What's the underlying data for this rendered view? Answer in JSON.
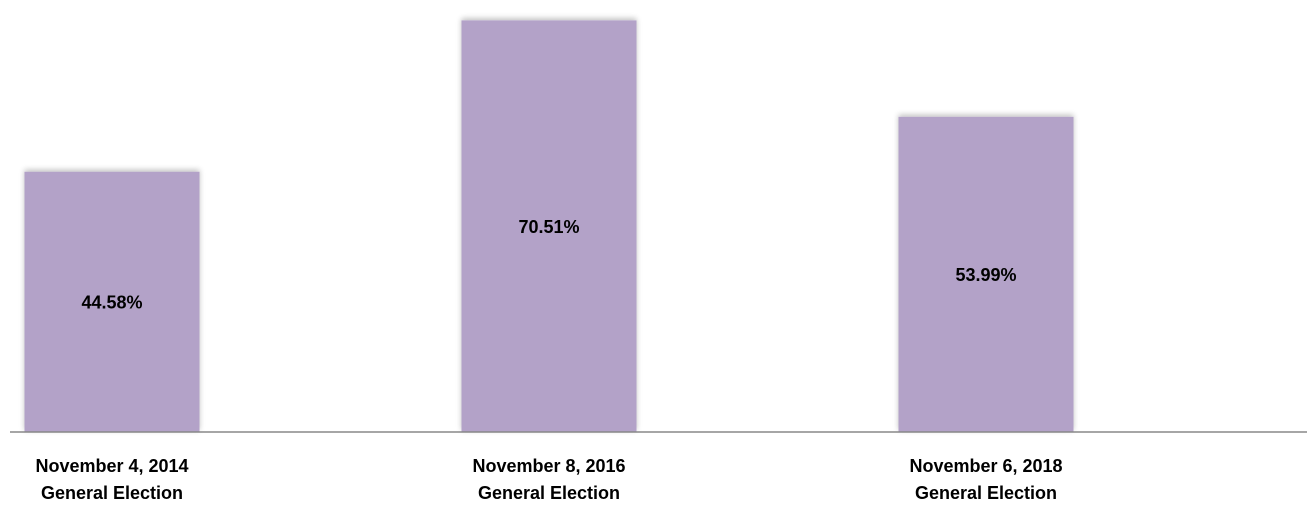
{
  "chart_data": {
    "type": "bar",
    "categories": [
      "November 4, 2014\nGeneral Election",
      "November 8, 2016\nGeneral Election",
      "November 6, 2018\nGeneral Election"
    ],
    "values": [
      44.58,
      70.51,
      53.99
    ],
    "value_labels": [
      "44.58%",
      "70.51%",
      "53.99%"
    ],
    "color": "#b3a2c8",
    "ylim": [
      0,
      74
    ]
  }
}
